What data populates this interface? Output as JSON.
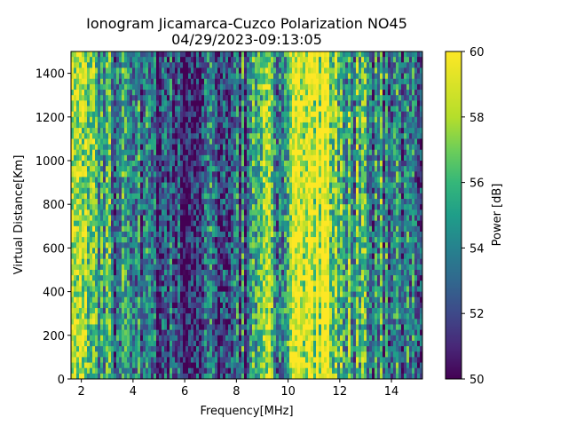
{
  "chart_data": {
    "type": "heatmap",
    "title": "Ionogram Jicamarca-Cuzco Polarization NO45",
    "subtitle": "04/29/2023-09:13:05",
    "xlabel": "Frequency[MHz]",
    "ylabel": "Virtual Distance[Km]",
    "xlim": [
      1.6,
      15.2
    ],
    "ylim": [
      0,
      1500
    ],
    "xticks": [
      2,
      4,
      6,
      8,
      10,
      12,
      14
    ],
    "yticks": [
      0,
      200,
      400,
      600,
      800,
      1000,
      1200,
      1400
    ],
    "colorbar": {
      "label": "Power [dB]",
      "range": [
        50,
        60
      ],
      "ticks": [
        50,
        52,
        54,
        56,
        58,
        60
      ],
      "colormap": "viridis"
    },
    "grid": false,
    "band_profile": [
      {
        "f": 1.6,
        "level": 0.8
      },
      {
        "f": 2.5,
        "level": 0.7
      },
      {
        "f": 3.0,
        "level": 0.45
      },
      {
        "f": 4.0,
        "level": 0.3
      },
      {
        "f": 5.0,
        "level": 0.25
      },
      {
        "f": 6.0,
        "level": 0.2
      },
      {
        "f": 7.0,
        "level": 0.3
      },
      {
        "f": 8.5,
        "level": 0.35
      },
      {
        "f": 9.0,
        "level": 0.55
      },
      {
        "f": 9.2,
        "level": 0.95
      },
      {
        "f": 9.6,
        "level": 0.5
      },
      {
        "f": 10.0,
        "level": 0.7
      },
      {
        "f": 10.5,
        "level": 0.97
      },
      {
        "f": 11.6,
        "level": 0.97
      },
      {
        "f": 12.0,
        "level": 0.6
      },
      {
        "f": 12.5,
        "level": 0.55
      },
      {
        "f": 13.5,
        "level": 0.45
      },
      {
        "f": 14.5,
        "level": 0.35
      },
      {
        "f": 15.2,
        "level": 0.3
      }
    ]
  }
}
